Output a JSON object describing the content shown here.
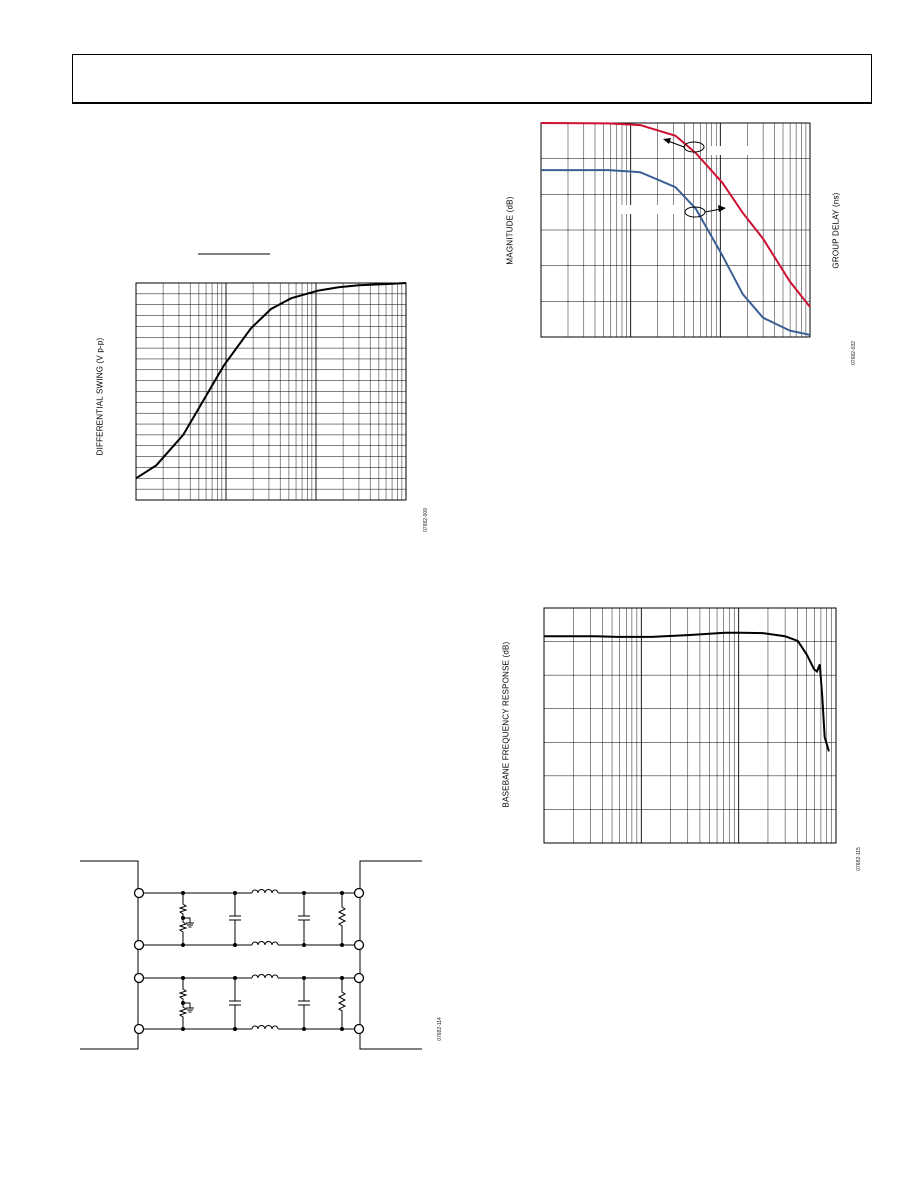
{
  "fig_swing": {
    "ylabel": "DIFFERENTIAL SWING (V p-p)",
    "fig_code": "07682-009"
  },
  "fig_filter_response": {
    "ylabel_left": "MAGNITUDE (dB)",
    "ylabel_right": "GROUP DELAY (ns)",
    "fig_code": "07682-032"
  },
  "fig_baseband": {
    "ylabel": "BASEBANE FREQUENCY RESPONSE (dB)",
    "fig_code": "07682-115"
  },
  "fig_schematic": {
    "fig_code": "07682-114"
  },
  "chart_data": [
    {
      "type": "line",
      "xscale": "log",
      "ylabel": "DIFFERENTIAL SWING (V p-p)",
      "xlim": [
        0.1,
        1000
      ],
      "ylim": [
        0,
        1
      ],
      "grid": true,
      "series": [
        {
          "x": [
            0.1,
            0.2,
            0.5,
            1,
            2,
            5,
            10,
            20,
            50,
            100,
            200,
            500,
            1000
          ],
          "y": [
            0.1,
            0.16,
            0.3,
            0.46,
            0.62,
            0.79,
            0.88,
            0.93,
            0.965,
            0.98,
            0.99,
            0.995,
            1.0
          ]
        }
      ]
    },
    {
      "type": "line",
      "xscale": "log",
      "ylabel": "MAGNITUDE (dB)",
      "y2label": "GROUP DELAY (ns)",
      "xlim": [
        0.1,
        1000
      ],
      "ylim": [
        0,
        1
      ],
      "grid": true,
      "series": [
        {
          "color": "#cc1133",
          "x": [
            0.1,
            1,
            3,
            10,
            20,
            50,
            100,
            200,
            500,
            1000
          ],
          "y": [
            1.0,
            0.998,
            0.99,
            0.94,
            0.86,
            0.72,
            0.58,
            0.46,
            0.26,
            0.14
          ]
        },
        {
          "color": "#3a5f94",
          "x": [
            0.1,
            1,
            3,
            10,
            20,
            50,
            100,
            200,
            500,
            1000
          ],
          "y": [
            0.78,
            0.78,
            0.77,
            0.7,
            0.6,
            0.38,
            0.2,
            0.09,
            0.03,
            0.01
          ]
        }
      ]
    },
    {
      "type": "line",
      "xscale": "log",
      "ylabel": "BASEBANE FREQUENCY RESPONSE (dB)",
      "xlim": [
        0.1,
        1000
      ],
      "ylim": [
        0,
        1
      ],
      "grid": true,
      "series": [
        {
          "x": [
            0.1,
            0.5,
            1,
            3,
            10,
            30,
            50,
            100,
            200,
            300,
            400,
            500,
            550,
            600,
            650,
            700,
            800
          ],
          "y": [
            0.88,
            0.88,
            0.877,
            0.877,
            0.885,
            0.895,
            0.895,
            0.893,
            0.88,
            0.86,
            0.8,
            0.74,
            0.73,
            0.76,
            0.62,
            0.45,
            0.39
          ]
        }
      ]
    }
  ]
}
